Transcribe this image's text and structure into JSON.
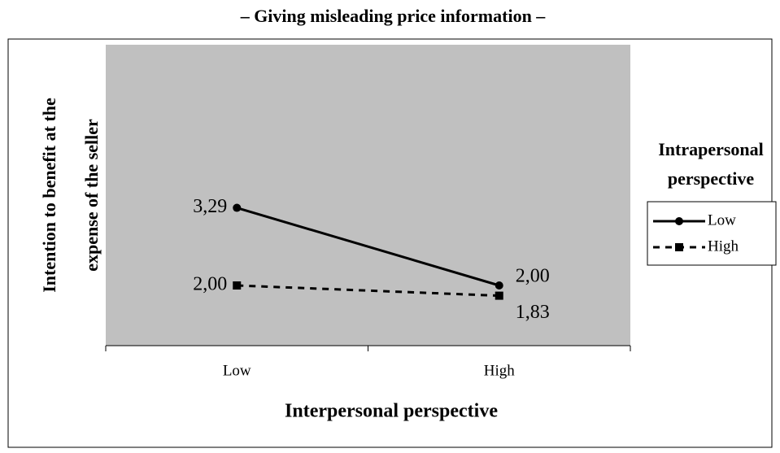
{
  "chart_data": {
    "type": "line",
    "title": "– Giving misleading price information –",
    "y_label": [
      "Intention to benefit at the",
      "expense of the seller"
    ],
    "x_label": "Interpersonal perspective",
    "legend_title": [
      "Intrapersonal",
      "perspective"
    ],
    "categories": [
      "Low",
      "High"
    ],
    "ylim": [
      1,
      6
    ],
    "plot_background": "#c0c0c0",
    "legend": "right",
    "series": [
      {
        "name": "Low",
        "color": "#000000",
        "marker": "circle",
        "line_style": "solid",
        "values": [
          3.29,
          2.0
        ],
        "value_labels": [
          "3,29",
          "2,00"
        ]
      },
      {
        "name": "High",
        "color": "#000000",
        "marker": "square",
        "line_style": "dashed",
        "values": [
          2.0,
          1.83
        ],
        "value_labels": [
          "2,00",
          "1,83"
        ]
      }
    ]
  }
}
